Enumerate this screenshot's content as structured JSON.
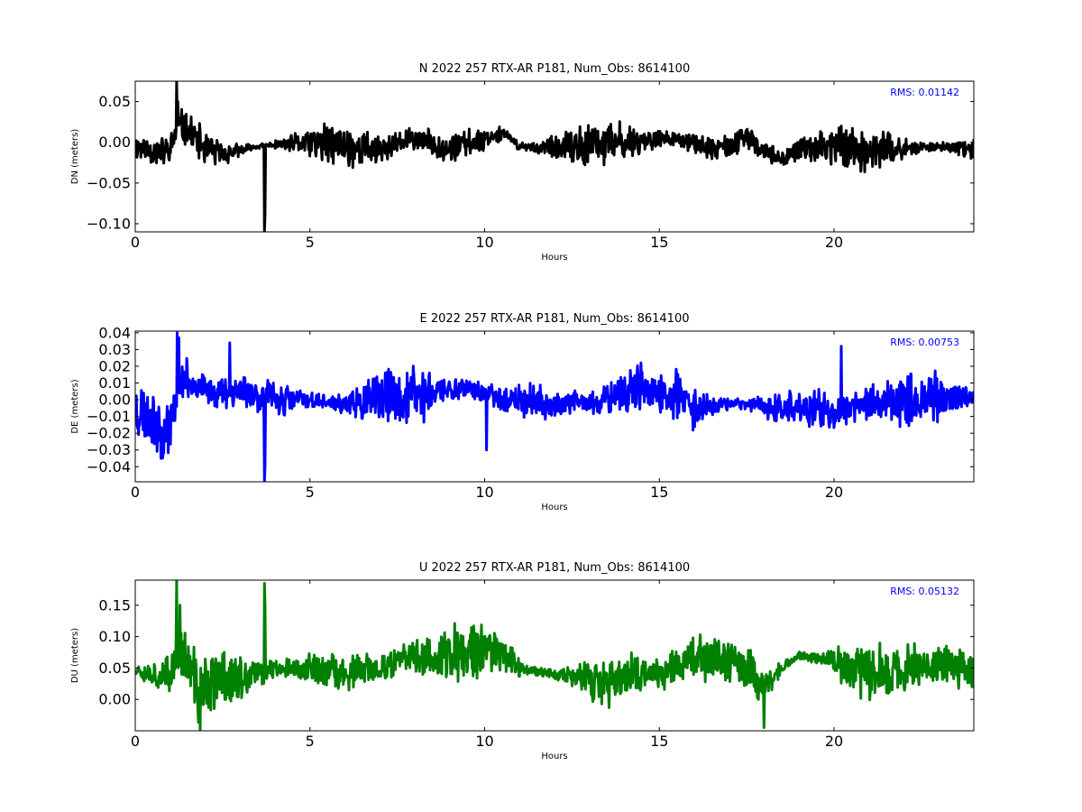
{
  "chart_data": [
    {
      "type": "line",
      "title": "N 2022 257 RTX-AR  P181, Num_Obs: 8614100",
      "xlabel": "Hours",
      "ylabel": "DN (meters)",
      "xlim": [
        0,
        24
      ],
      "ylim": [
        -0.11,
        0.075
      ],
      "xticks": [
        0,
        5,
        10,
        15,
        20
      ],
      "xtick_labels": [
        "0",
        "5",
        "10",
        "15",
        "20"
      ],
      "yticks": [
        0.05,
        0.0,
        -0.05,
        -0.1
      ],
      "ytick_labels": [
        "0.05",
        "0.00",
        "−0.05",
        "−0.10"
      ],
      "annotation": "RMS:  0.01142",
      "color": "#000000",
      "grid": false,
      "noise": {
        "base_amplitude": 0.024,
        "seed": 11
      },
      "trend": {
        "x": [
          0,
          0.5,
          1.0,
          1.2,
          1.5,
          2.0,
          2.5,
          3.0,
          3.5,
          4.0,
          5.0,
          6.0,
          7.0,
          8.0,
          9.0,
          10.0,
          10.5,
          11.0,
          12.0,
          13.0,
          14.0,
          15.0,
          16.0,
          16.5,
          17.0,
          17.5,
          18.0,
          18.5,
          19.0,
          20.0,
          21.0,
          22.0,
          23.0,
          24.0
        ],
        "y": [
          -0.005,
          -0.01,
          -0.012,
          0.02,
          0.015,
          -0.008,
          -0.015,
          -0.01,
          -0.005,
          -0.003,
          0.0,
          -0.005,
          -0.01,
          0.005,
          -0.008,
          0.005,
          0.012,
          -0.005,
          -0.008,
          -0.005,
          0.0,
          0.005,
          0.0,
          -0.01,
          -0.005,
          0.005,
          -0.01,
          -0.02,
          -0.01,
          -0.002,
          -0.01,
          -0.008,
          -0.005,
          -0.01
        ]
      },
      "spikes": [
        {
          "x": 1.18,
          "y": 0.075
        },
        {
          "x": 1.22,
          "y": 0.05
        },
        {
          "x": 3.7,
          "y": -0.11
        },
        {
          "x": 3.72,
          "y": -0.09
        }
      ]
    },
    {
      "type": "line",
      "title": "E 2022 257 RTX-AR  P181, Num_Obs: 8614100",
      "xlabel": "Hours",
      "ylabel": "DE (meters)",
      "xlim": [
        0,
        24
      ],
      "ylim": [
        -0.049,
        0.041
      ],
      "xticks": [
        0,
        5,
        10,
        15,
        20
      ],
      "xtick_labels": [
        "0",
        "5",
        "10",
        "15",
        "20"
      ],
      "yticks": [
        0.04,
        0.03,
        0.02,
        0.01,
        0.0,
        -0.01,
        -0.02,
        -0.03,
        -0.04
      ],
      "ytick_labels": [
        "0.04",
        "0.03",
        "0.02",
        "0.01",
        "0.00",
        "−0.01",
        "−0.02",
        "−0.03",
        "−0.04"
      ],
      "annotation": "RMS:  0.00753",
      "color": "#0000ff",
      "grid": false,
      "noise": {
        "base_amplitude": 0.016,
        "seed": 23
      },
      "trend": {
        "x": [
          0,
          0.5,
          0.8,
          1.1,
          1.2,
          1.5,
          2.0,
          2.5,
          3.0,
          4.0,
          5.0,
          6.0,
          7.0,
          8.0,
          9.0,
          9.5,
          10.0,
          11.0,
          12.0,
          13.0,
          13.5,
          14.0,
          15.0,
          16.0,
          17.0,
          18.0,
          18.5,
          19.0,
          20.0,
          20.5,
          21.0,
          22.0,
          23.0,
          24.0
        ],
        "y": [
          -0.005,
          -0.01,
          -0.02,
          -0.01,
          0.01,
          0.012,
          0.005,
          0.005,
          0.006,
          0.0,
          0.0,
          -0.003,
          0.0,
          0.003,
          0.006,
          0.008,
          0.003,
          0.0,
          -0.003,
          -0.002,
          0.0,
          0.006,
          0.003,
          -0.004,
          -0.002,
          -0.003,
          -0.006,
          -0.004,
          -0.008,
          -0.003,
          -0.002,
          0.0,
          0.001,
          0.002
        ]
      },
      "spikes": [
        {
          "x": 1.2,
          "y": 0.04
        },
        {
          "x": 1.25,
          "y": 0.037
        },
        {
          "x": 2.7,
          "y": 0.034
        },
        {
          "x": 3.7,
          "y": -0.049
        },
        {
          "x": 3.72,
          "y": -0.04
        },
        {
          "x": 10.05,
          "y": -0.03
        },
        {
          "x": 20.2,
          "y": 0.032
        }
      ]
    },
    {
      "type": "line",
      "title": "U 2022 257 RTX-AR  P181, Num_Obs: 8614100",
      "xlabel": "Hours",
      "ylabel": "DU (meters)",
      "xlim": [
        0,
        24
      ],
      "ylim": [
        -0.05,
        0.19
      ],
      "xticks": [
        0,
        5,
        10,
        15,
        20
      ],
      "xtick_labels": [
        "0",
        "5",
        "10",
        "15",
        "20"
      ],
      "yticks": [
        0.15,
        0.1,
        0.05,
        0.0
      ],
      "ytick_labels": [
        "0.15",
        "0.10",
        "0.05",
        "0.00"
      ],
      "annotation": "RMS:  0.05132",
      "color": "#008000",
      "grid": false,
      "noise": {
        "base_amplitude": 0.045,
        "seed": 37
      },
      "trend": {
        "x": [
          0,
          0.5,
          1.0,
          1.2,
          1.5,
          1.8,
          2.0,
          2.5,
          3.0,
          3.5,
          4.0,
          5.0,
          6.0,
          7.0,
          8.0,
          9.0,
          10.0,
          10.5,
          11.0,
          12.0,
          13.0,
          13.5,
          14.0,
          15.0,
          16.0,
          17.0,
          17.5,
          18.0,
          18.5,
          19.0,
          20.0,
          21.0,
          22.0,
          23.0,
          24.0
        ],
        "y": [
          0.05,
          0.04,
          0.035,
          0.08,
          0.06,
          0.01,
          0.02,
          0.04,
          0.03,
          0.04,
          0.05,
          0.05,
          0.04,
          0.05,
          0.07,
          0.07,
          0.08,
          0.08,
          0.05,
          0.04,
          0.03,
          0.02,
          0.04,
          0.04,
          0.07,
          0.06,
          0.05,
          0.02,
          0.05,
          0.07,
          0.06,
          0.04,
          0.05,
          0.06,
          0.05
        ]
      },
      "spikes": [
        {
          "x": 1.18,
          "y": 0.19
        },
        {
          "x": 1.28,
          "y": 0.15
        },
        {
          "x": 1.85,
          "y": -0.05
        },
        {
          "x": 3.7,
          "y": 0.185
        },
        {
          "x": 3.72,
          "y": 0.15
        },
        {
          "x": 18.0,
          "y": -0.045
        }
      ]
    }
  ]
}
